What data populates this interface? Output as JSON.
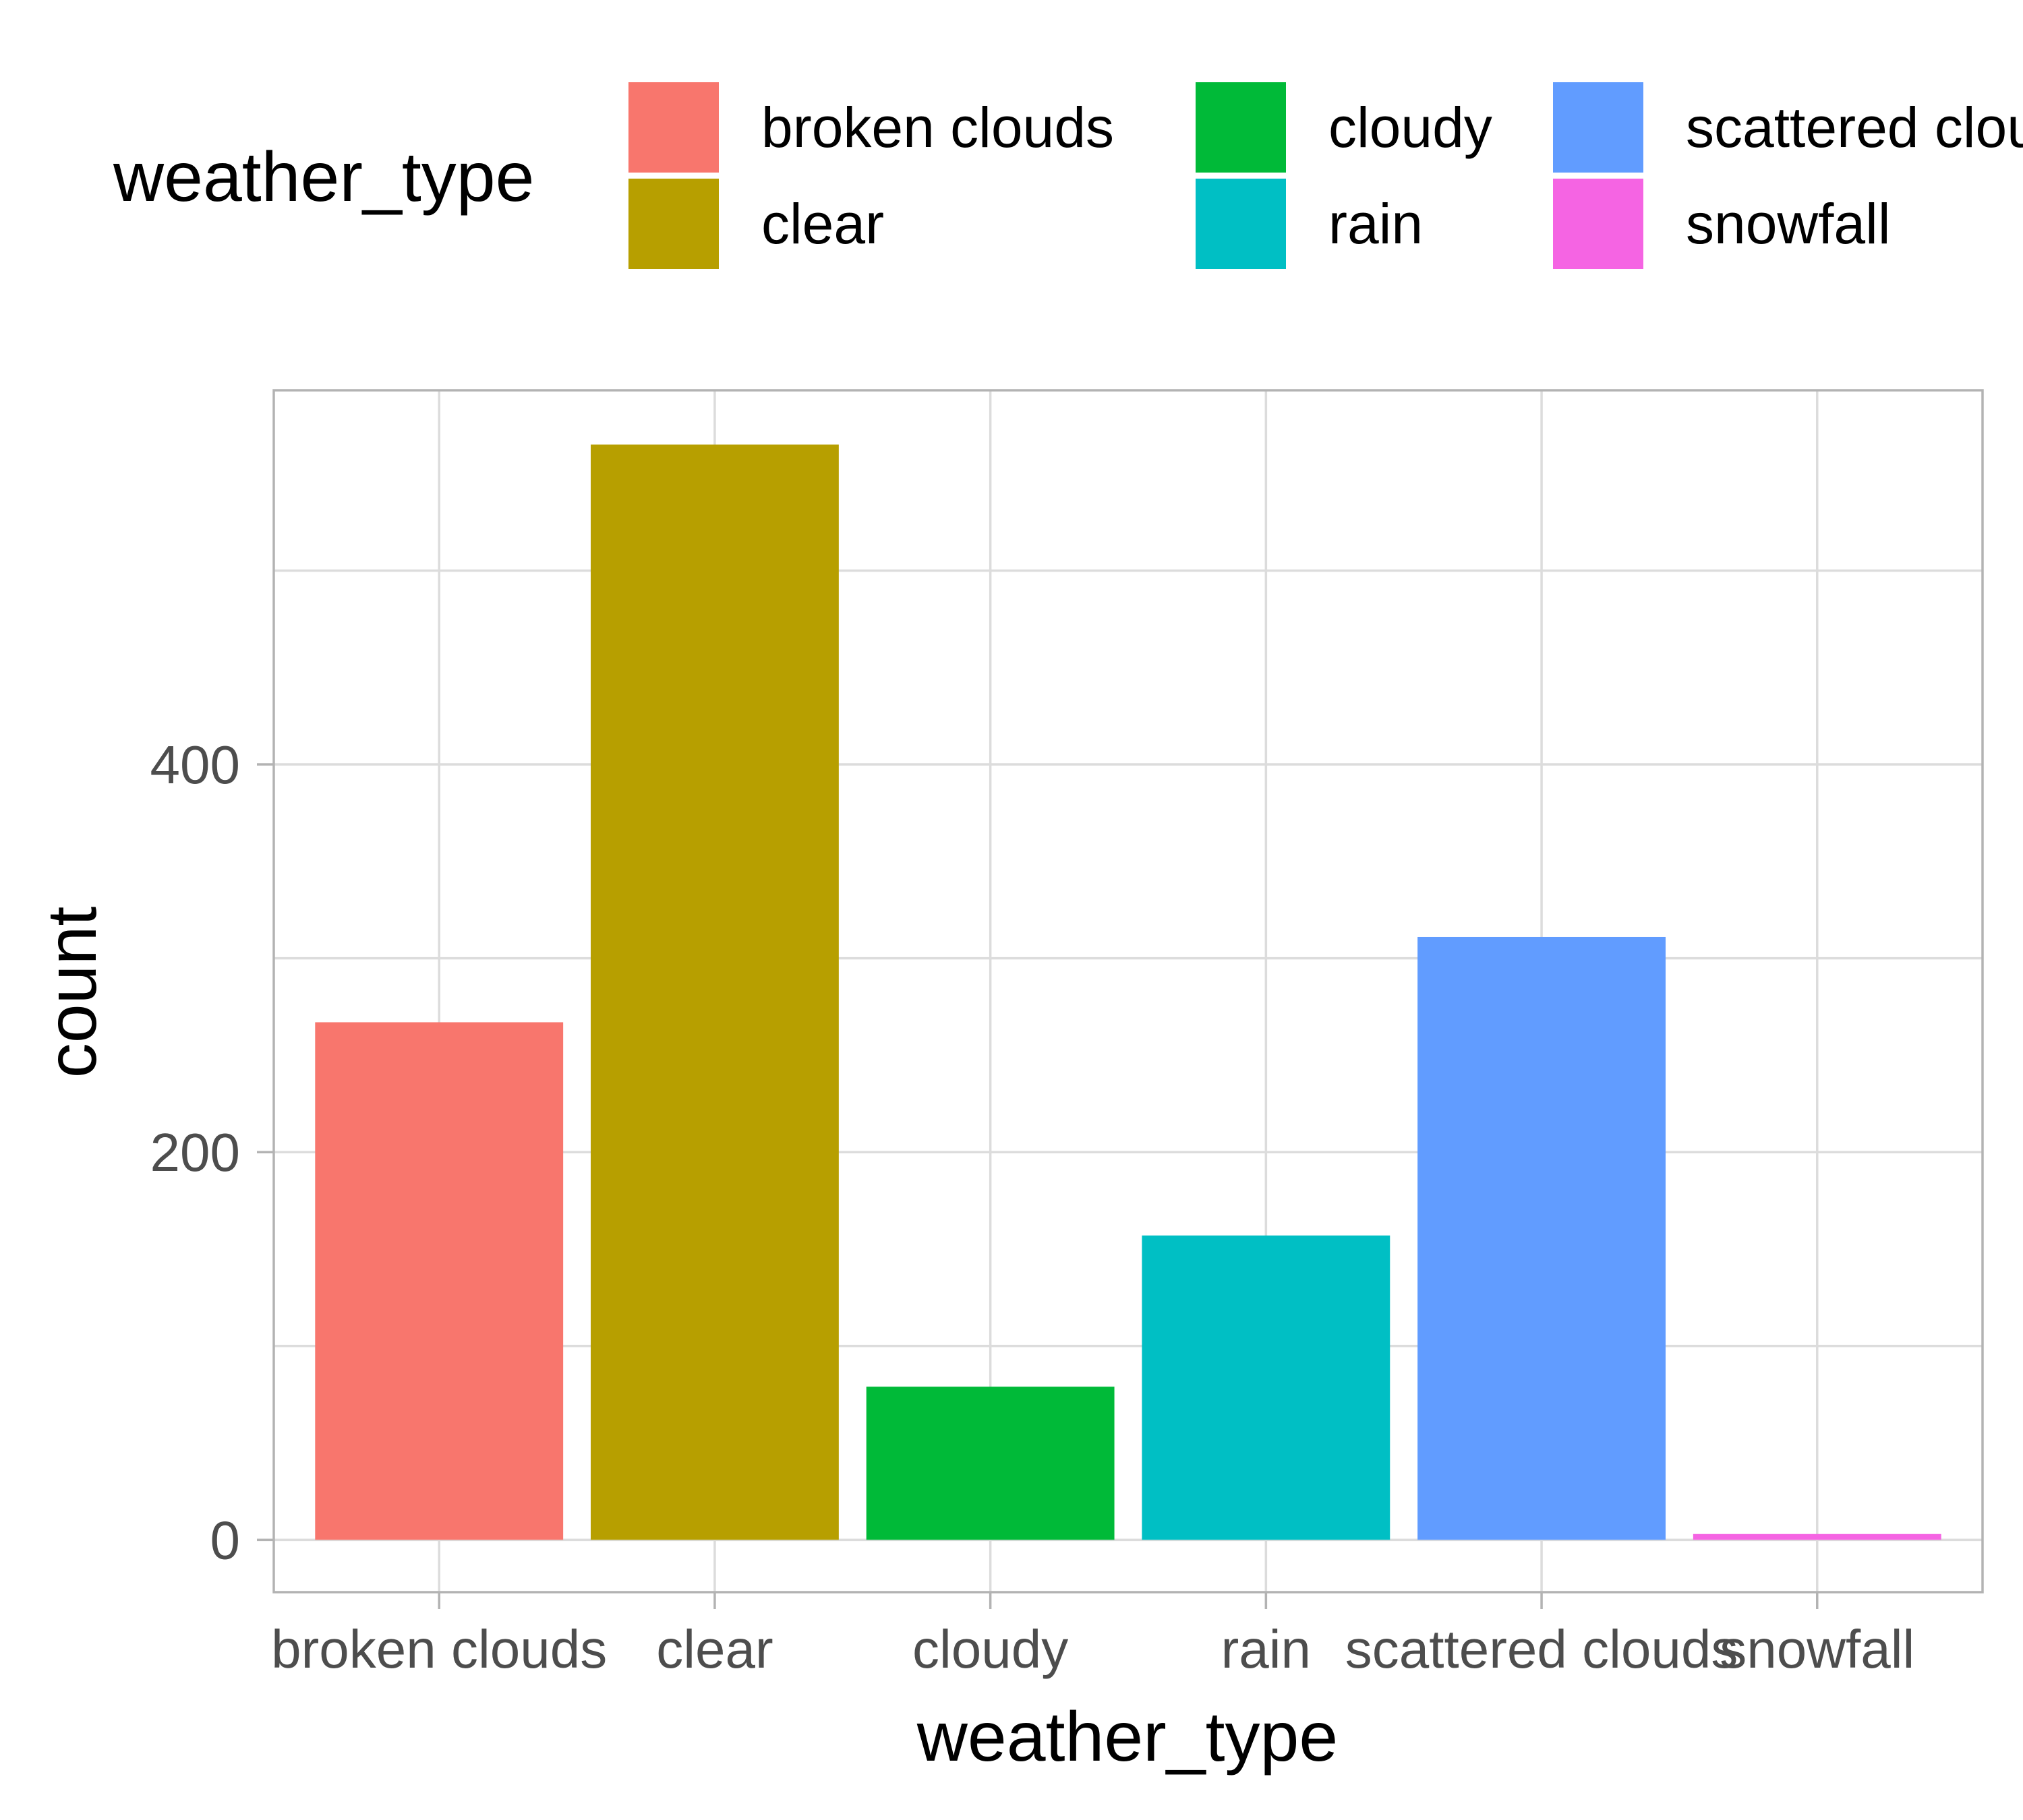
{
  "chart_data": {
    "type": "bar",
    "xlabel": "weather_type",
    "ylabel": "count",
    "categories": [
      "broken clouds",
      "clear",
      "cloudy",
      "rain",
      "scattered clouds",
      "snowfall"
    ],
    "values": [
      267,
      565,
      79,
      157,
      311,
      3
    ],
    "ylim": [
      -27,
      593
    ],
    "yticks": [
      0,
      200,
      400
    ],
    "ytick_labels": [
      "0",
      "200",
      "400"
    ],
    "grid": true,
    "legend": {
      "title": "weather_type",
      "placement": "top",
      "entries": [
        "broken clouds",
        "clear",
        "cloudy",
        "rain",
        "scattered clouds",
        "snowfall"
      ]
    },
    "colors": {
      "broken clouds": "#F8766D",
      "clear": "#B79F00",
      "cloudy": "#00BA38",
      "rain": "#00BFC4",
      "scattered clouds": "#619CFF",
      "snowfall": "#F564E3"
    }
  }
}
